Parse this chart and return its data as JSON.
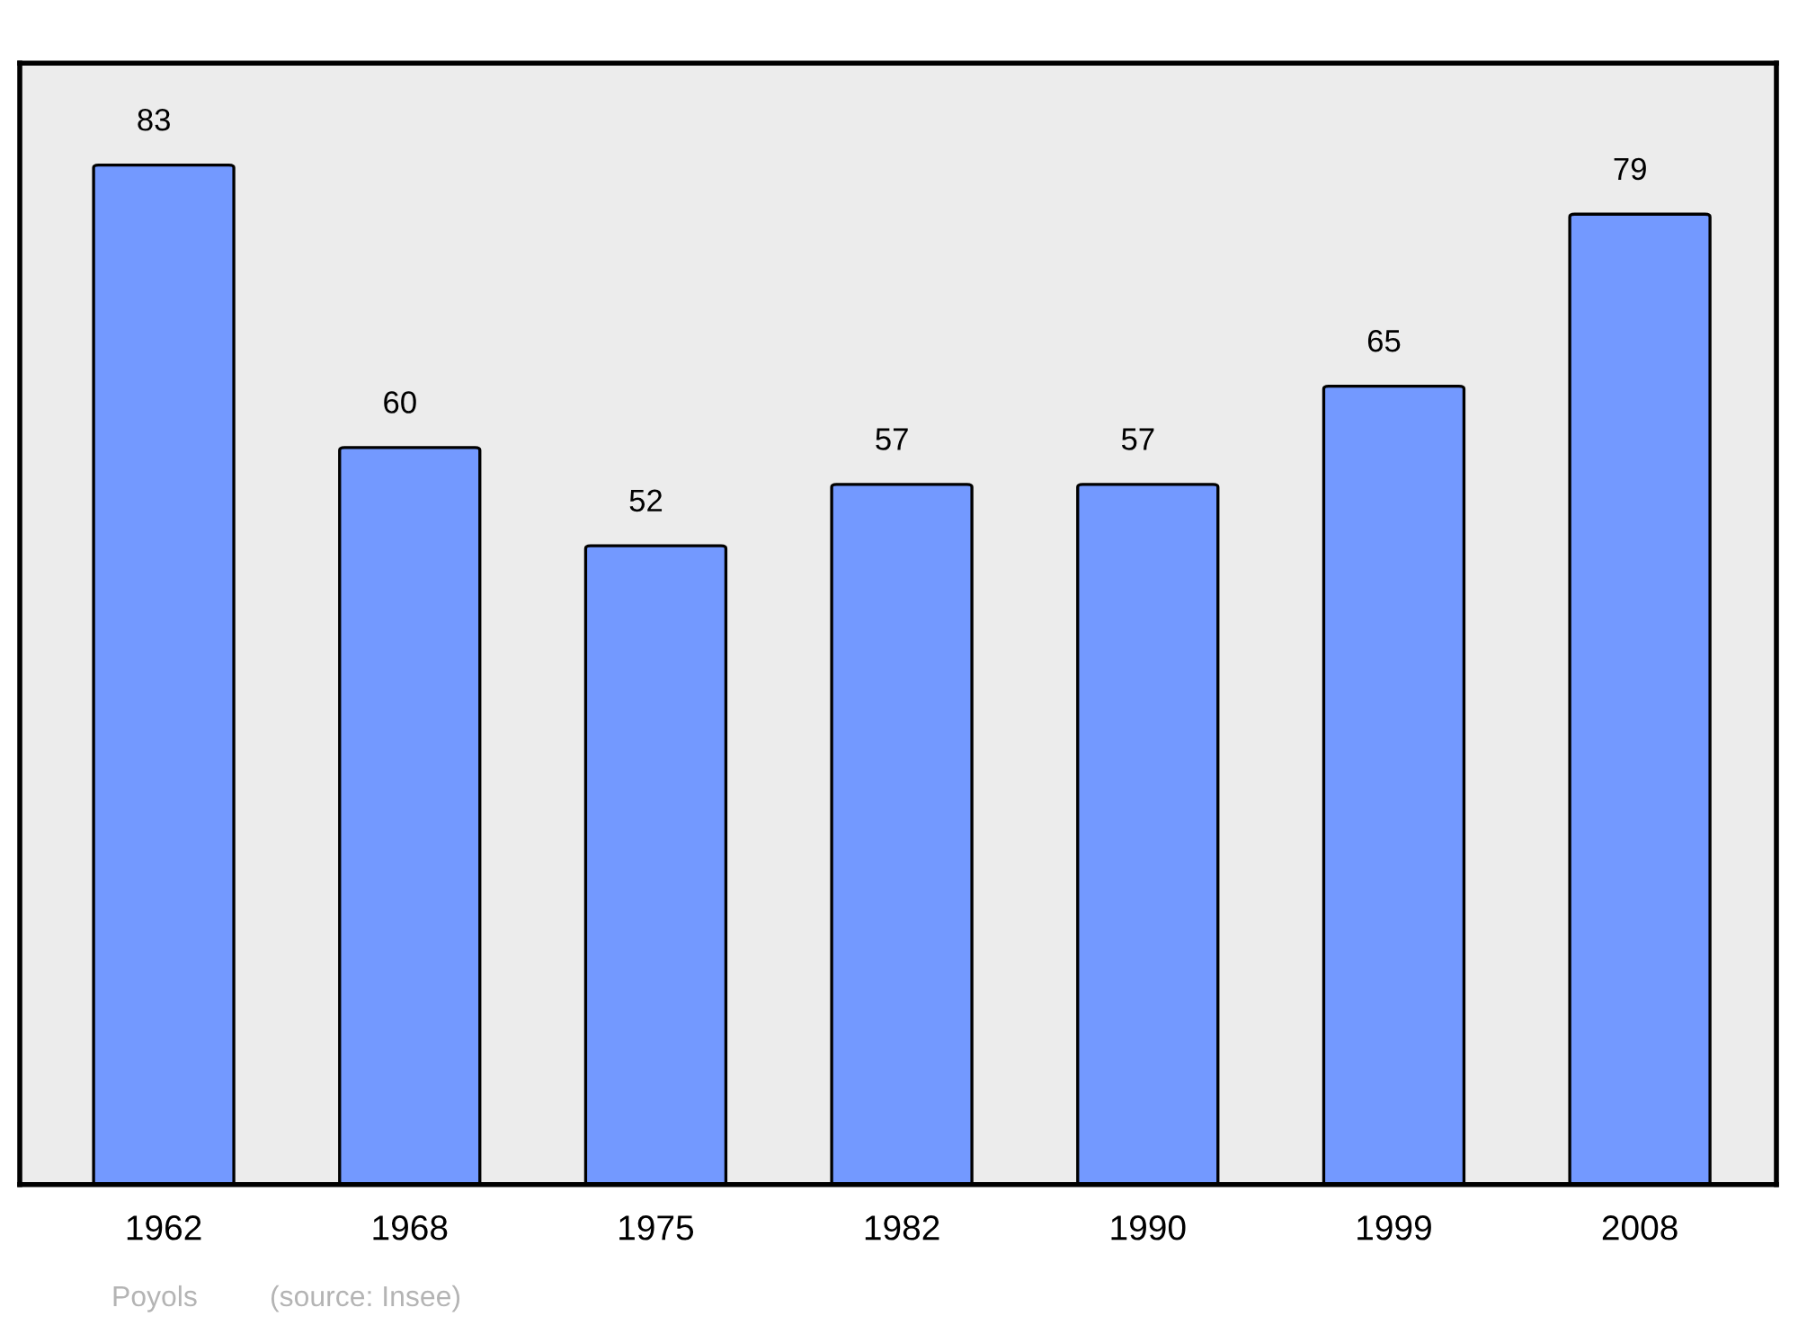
{
  "chart_data": {
    "type": "bar",
    "categories": [
      "1962",
      "1968",
      "1975",
      "1982",
      "1990",
      "1999",
      "2008"
    ],
    "values": [
      83,
      60,
      52,
      57,
      57,
      65,
      79
    ],
    "color": "#7399ff",
    "data_labels": true,
    "grid": false,
    "tick_labels": "x",
    "annotations": [
      "Poyols",
      "(source: Insee)"
    ]
  }
}
